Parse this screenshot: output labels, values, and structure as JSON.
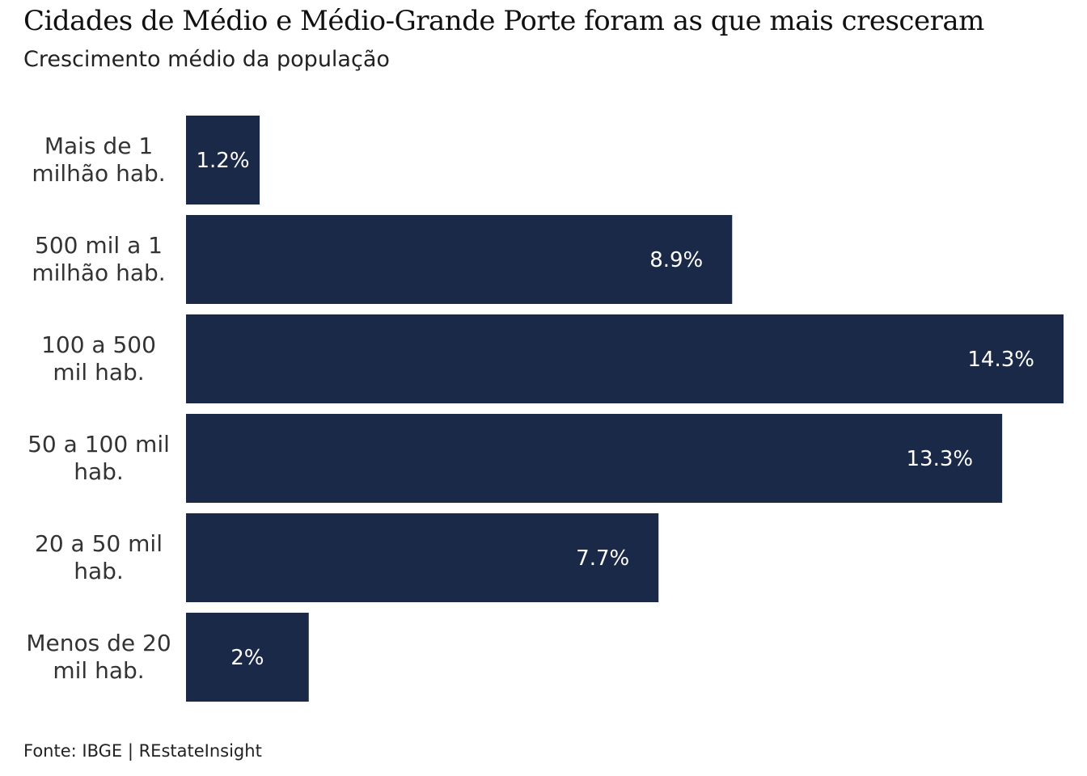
{
  "header": {
    "title": "Cidades de Médio e Médio-Grande Porte foram as que mais cresceram",
    "subtitle": "Crescimento médio da população"
  },
  "footer": {
    "source": "Fonte: IBGE | REstateInsight"
  },
  "colors": {
    "bar": "#1b2948",
    "value_text": "#ffffff",
    "category_text": "#333333"
  },
  "chart_data": {
    "type": "bar",
    "orientation": "horizontal",
    "title": "Cidades de Médio e Médio-Grande Porte foram as que mais cresceram",
    "subtitle": "Crescimento médio da população",
    "xlabel": "",
    "ylabel": "",
    "grid": false,
    "legend": "none",
    "xlim": [
      0,
      14.3
    ],
    "categories": [
      [
        "Mais de 1",
        "milhão hab."
      ],
      [
        "500 mil a 1",
        "milhão hab."
      ],
      [
        "100 a 500",
        "mil hab."
      ],
      [
        "50 a 100 mil",
        "hab."
      ],
      [
        "20 a 50 mil",
        "hab."
      ],
      [
        "Menos de 20",
        "mil hab."
      ]
    ],
    "values": [
      1.2,
      8.9,
      14.3,
      13.3,
      7.7,
      2
    ],
    "value_labels": [
      "1.2%",
      "8.9%",
      "14.3%",
      "13.3%",
      "7.7%",
      "2%"
    ]
  }
}
